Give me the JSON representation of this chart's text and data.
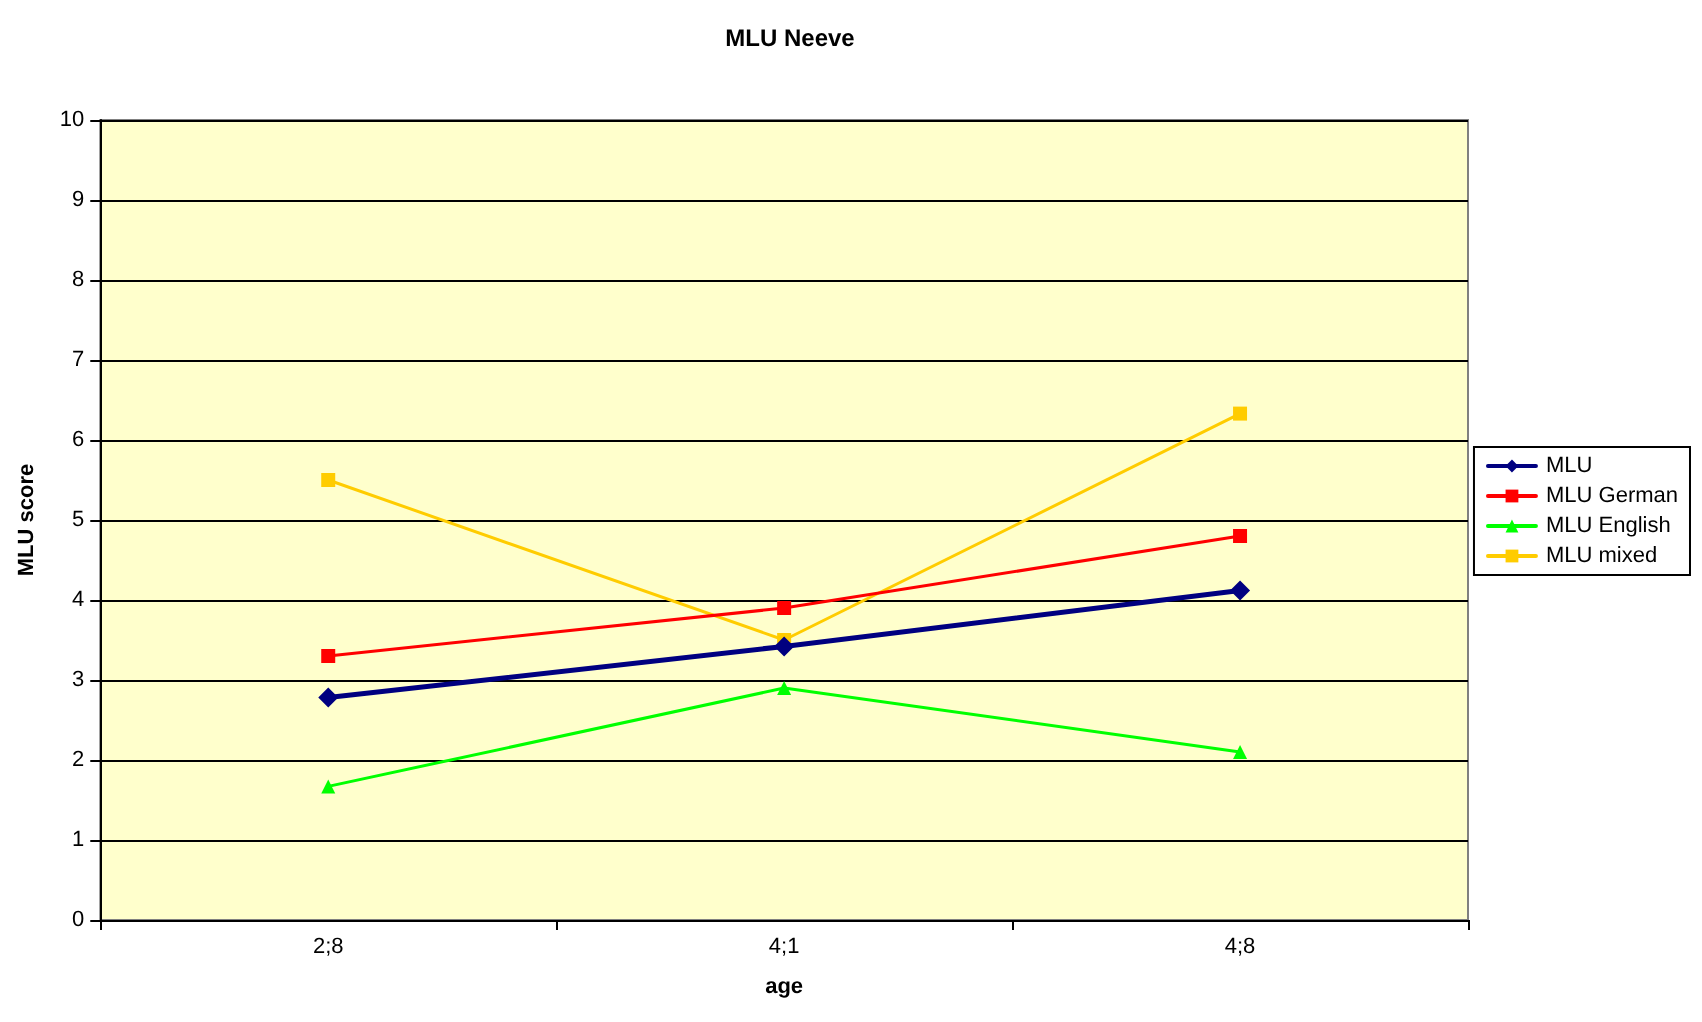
{
  "chart_data": {
    "type": "line",
    "title": "MLU Neeve",
    "xlabel": "age",
    "ylabel": "MLU score",
    "categories": [
      "2;8",
      "4;1",
      "4;8"
    ],
    "series": [
      {
        "name": "MLU",
        "color": "#000080",
        "marker": "diamond",
        "values": [
          2.78,
          3.42,
          4.12
        ]
      },
      {
        "name": "MLU German",
        "color": "#ff0000",
        "marker": "square",
        "values": [
          3.3,
          3.9,
          4.8
        ]
      },
      {
        "name": "MLU English",
        "color": "#00ff00",
        "marker": "triangle",
        "values": [
          1.67,
          2.9,
          2.1
        ]
      },
      {
        "name": "MLU mixed",
        "color": "#ffcc00",
        "marker": "square",
        "values": [
          5.5,
          3.5,
          6.33
        ]
      }
    ],
    "ylim": [
      0,
      10
    ],
    "yticks": [
      0,
      1,
      2,
      3,
      4,
      5,
      6,
      7,
      8,
      9,
      10
    ],
    "grid": "y",
    "legend": "right"
  }
}
